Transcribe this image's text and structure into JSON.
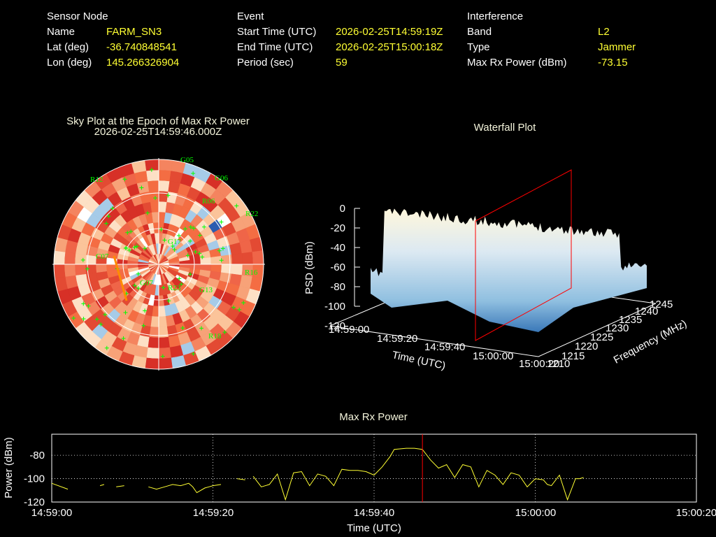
{
  "colors": {
    "background": "#000000",
    "label": "#ffffff",
    "value": "#ffff33",
    "satellite": "#00ff00",
    "cursor": "#ff0000",
    "grid": "#ffffff",
    "trace": "#ffff33"
  },
  "header": {
    "sensor": {
      "heading": "Sensor Node",
      "rows": [
        {
          "label": "Name",
          "value": "FARM_SN3"
        },
        {
          "label": "Lat (deg)",
          "value": "-36.740848541"
        },
        {
          "label": "Lon (deg)",
          "value": "145.266326904"
        }
      ]
    },
    "event": {
      "heading": "Event",
      "rows": [
        {
          "label": "Start Time (UTC)",
          "value": "2026-02-25T14:59:19Z"
        },
        {
          "label": "End Time (UTC)",
          "value": "2026-02-25T15:00:18Z"
        },
        {
          "label": "Period (sec)",
          "value": "59"
        }
      ]
    },
    "interference": {
      "heading": "Interference",
      "rows": [
        {
          "label": "Band",
          "value": "L2"
        },
        {
          "label": "Type",
          "value": "Jammer"
        },
        {
          "label": "Max Rx Power (dBm)",
          "value": "-73.15"
        }
      ]
    }
  },
  "skyplot": {
    "title": "Sky Plot at the Epoch of Max Rx Power",
    "subtitle": "2026-02-25T14:59:46.000Z",
    "satellites": [
      "G05",
      "R12",
      "G06",
      "R06",
      "R22",
      "C07",
      "G07",
      "R23",
      "R16",
      "R18",
      "G17",
      "G13"
    ]
  },
  "chart_data": [
    {
      "type": "heatmap",
      "title": "Waterfall Plot",
      "xlabel": "Time (UTC)",
      "ylabel": "Frequency (MHz)",
      "zlabel": "PSD (dBm)",
      "x_ticks": [
        "14:59:00",
        "14:59:20",
        "14:59:40",
        "15:00:00",
        "15:00:20"
      ],
      "y_ticks": [
        "1210",
        "1215",
        "1220",
        "1225",
        "1230",
        "1235",
        "1240",
        "1245"
      ],
      "z_ticks": [
        "0",
        "-20",
        "-40",
        "-60",
        "-80",
        "-100",
        "-120"
      ],
      "zlim": [
        -120,
        0
      ]
    },
    {
      "type": "line",
      "title": "Max Rx Power",
      "xlabel": "Time (UTC)",
      "ylabel": "Power (dBm)",
      "x_ticks": [
        "14:59:00",
        "14:59:20",
        "14:59:40",
        "15:00:00",
        "15:00:20"
      ],
      "y_ticks": [
        -80,
        -100,
        -120
      ],
      "xlim": [
        0,
        80
      ],
      "ylim": [
        -120,
        -62
      ],
      "grid": true,
      "cursor_x": 46,
      "x_unit": "seconds after 14:59:00",
      "segments": [
        [
          [
            0,
            -104
          ],
          [
            2,
            -109
          ]
        ],
        [
          [
            6,
            -106
          ],
          [
            6.5,
            -105
          ]
        ],
        [
          [
            8,
            -107
          ],
          [
            9,
            -106
          ]
        ],
        [
          [
            12,
            -107
          ],
          [
            13,
            -109
          ],
          [
            14,
            -107
          ],
          [
            15,
            -105
          ],
          [
            16,
            -106
          ],
          [
            17,
            -104
          ],
          [
            17.5,
            -107
          ],
          [
            18,
            -112
          ],
          [
            19,
            -108
          ],
          [
            19.5,
            -107
          ],
          [
            20,
            -106
          ],
          [
            21,
            -105
          ]
        ],
        [
          [
            23,
            -100
          ],
          [
            24,
            -101
          ]
        ],
        [
          [
            25,
            -98
          ],
          [
            26,
            -107
          ],
          [
            27,
            -105
          ],
          [
            28,
            -96
          ],
          [
            29,
            -118
          ],
          [
            30,
            -95
          ],
          [
            31,
            -94
          ],
          [
            32,
            -106
          ],
          [
            33,
            -96
          ],
          [
            34,
            -98
          ],
          [
            35,
            -106
          ],
          [
            36,
            -92
          ],
          [
            37,
            -93
          ],
          [
            38,
            -93
          ],
          [
            39,
            -94
          ],
          [
            40,
            -97
          ],
          [
            41,
            -90
          ],
          [
            42,
            -81
          ],
          [
            42.5,
            -75
          ],
          [
            44,
            -74
          ],
          [
            45,
            -74
          ],
          [
            46,
            -75
          ],
          [
            47,
            -84
          ],
          [
            48,
            -91
          ],
          [
            49,
            -88
          ],
          [
            50,
            -99
          ],
          [
            51,
            -88
          ],
          [
            52,
            -90
          ],
          [
            53,
            -107
          ],
          [
            54,
            -93
          ],
          [
            55,
            -97
          ],
          [
            56,
            -105
          ],
          [
            57,
            -95
          ],
          [
            58,
            -97
          ],
          [
            59,
            -107
          ],
          [
            60,
            -100
          ],
          [
            61,
            -101
          ],
          [
            61.5,
            -105
          ],
          [
            62,
            -106
          ],
          [
            63,
            -97
          ],
          [
            64,
            -118
          ],
          [
            65,
            -100
          ],
          [
            65.5,
            -100
          ],
          [
            66,
            -99
          ]
        ]
      ]
    }
  ]
}
